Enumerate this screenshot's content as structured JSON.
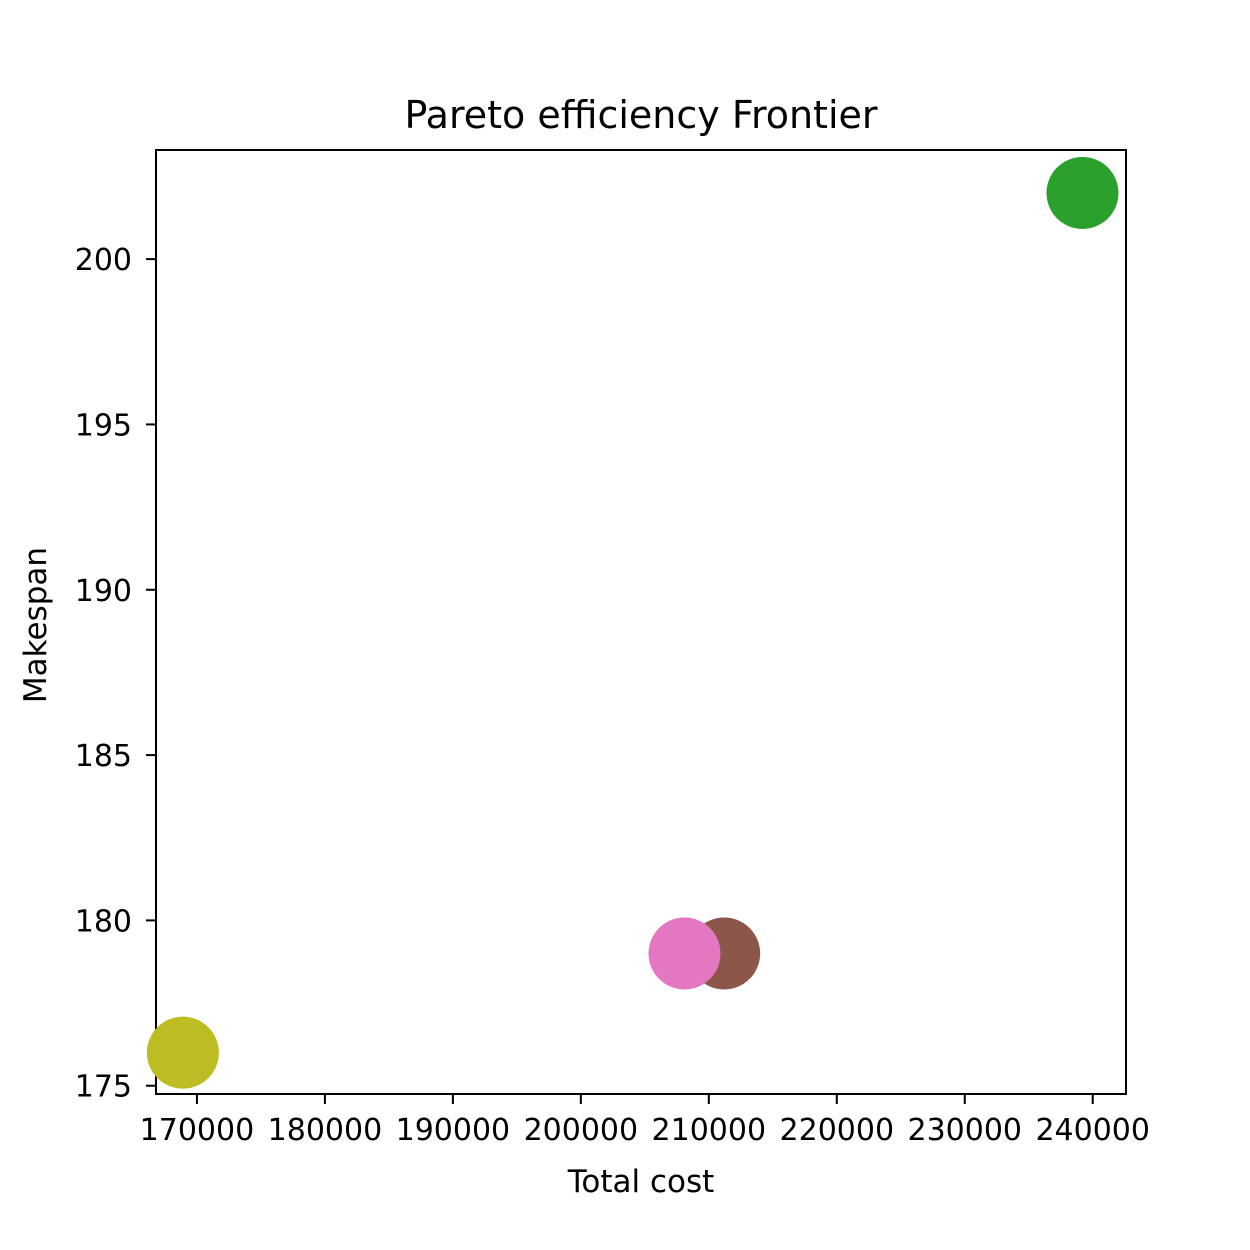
{
  "chart_data": {
    "type": "scatter",
    "title": "Pareto efficiency Frontier",
    "xlabel": "Total cost",
    "ylabel": "Makespan",
    "xlim": [
      166800,
      242600
    ],
    "ylim": [
      174.75,
      203.3
    ],
    "xticks": [
      170000,
      180000,
      190000,
      200000,
      210000,
      220000,
      230000,
      240000
    ],
    "yticks": [
      175,
      180,
      185,
      190,
      195,
      200
    ],
    "grid": false,
    "legend": "none",
    "points": [
      {
        "x": 239200,
        "y": 202,
        "color": "#2ca02c"
      },
      {
        "x": 211200,
        "y": 179,
        "color": "#8c564b"
      },
      {
        "x": 208100,
        "y": 179,
        "color": "#e377c2"
      },
      {
        "x": 168900,
        "y": 176,
        "color": "#bcbd22"
      }
    ]
  }
}
